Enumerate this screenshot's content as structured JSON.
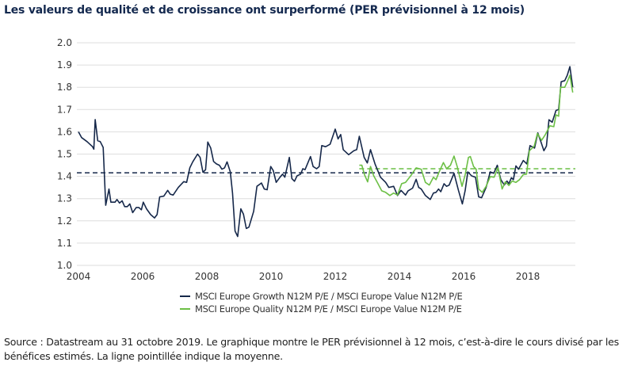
{
  "title": "Les valeurs de qualité et de croissance ont surperformé (PER prévisionnel à 12 mois)",
  "source": "Source : Datastream au 31 octobre 2019. Le graphique montre le PER prévisionnel à 12 mois, c’est-à-dire le cours divisé par les bénéfices estimés. La ligne pointillée indique la moyenne.",
  "chart_data": {
    "type": "line",
    "title": "Les valeurs de qualité et de croissance ont surperformé (PER prévisionnel à 12 mois)",
    "xlabel": "",
    "ylabel": "",
    "xlim": [
      2004,
      2019.45
    ],
    "ylim": [
      1.0,
      2.0
    ],
    "grid": true,
    "legend_position": "bottom",
    "x_ticks": [
      "2004",
      "2006",
      "2008",
      "2010",
      "2012",
      "2014",
      "2016",
      "2018"
    ],
    "y_ticks": [
      "2.0",
      "1.9",
      "1.8",
      "1.7",
      "1.6",
      "1.5",
      "1.4",
      "1.3",
      "1.2",
      "1.1",
      "1.0"
    ],
    "series": [
      {
        "name": "MSCI Europe Growth N12M P/E / MSCI Europe Value N12M P/E",
        "color": "#16284a",
        "mean": 1.416,
        "points": [
          [
            2004.0,
            1.6
          ],
          [
            2004.1,
            1.574
          ],
          [
            2004.27,
            1.556
          ],
          [
            2004.44,
            1.533
          ],
          [
            2004.48,
            1.522
          ],
          [
            2004.52,
            1.655
          ],
          [
            2004.6,
            1.56
          ],
          [
            2004.68,
            1.556
          ],
          [
            2004.77,
            1.53
          ],
          [
            2004.85,
            1.27
          ],
          [
            2004.95,
            1.343
          ],
          [
            2005.01,
            1.284
          ],
          [
            2005.14,
            1.284
          ],
          [
            2005.2,
            1.296
          ],
          [
            2005.28,
            1.28
          ],
          [
            2005.36,
            1.29
          ],
          [
            2005.44,
            1.264
          ],
          [
            2005.52,
            1.264
          ],
          [
            2005.6,
            1.276
          ],
          [
            2005.69,
            1.237
          ],
          [
            2005.8,
            1.26
          ],
          [
            2005.88,
            1.26
          ],
          [
            2005.96,
            1.25
          ],
          [
            2006.02,
            1.284
          ],
          [
            2006.12,
            1.254
          ],
          [
            2006.25,
            1.228
          ],
          [
            2006.37,
            1.213
          ],
          [
            2006.45,
            1.228
          ],
          [
            2006.53,
            1.308
          ],
          [
            2006.66,
            1.311
          ],
          [
            2006.78,
            1.337
          ],
          [
            2006.86,
            1.32
          ],
          [
            2006.95,
            1.316
          ],
          [
            2007.11,
            1.35
          ],
          [
            2007.28,
            1.376
          ],
          [
            2007.37,
            1.373
          ],
          [
            2007.47,
            1.438
          ],
          [
            2007.56,
            1.465
          ],
          [
            2007.71,
            1.5
          ],
          [
            2007.79,
            1.485
          ],
          [
            2007.88,
            1.418
          ],
          [
            2007.96,
            1.43
          ],
          [
            2008.03,
            1.554
          ],
          [
            2008.12,
            1.527
          ],
          [
            2008.21,
            1.467
          ],
          [
            2008.3,
            1.456
          ],
          [
            2008.39,
            1.45
          ],
          [
            2008.47,
            1.432
          ],
          [
            2008.55,
            1.438
          ],
          [
            2008.63,
            1.465
          ],
          [
            2008.73,
            1.42
          ],
          [
            2008.8,
            1.325
          ],
          [
            2008.88,
            1.154
          ],
          [
            2008.96,
            1.13
          ],
          [
            2009.06,
            1.254
          ],
          [
            2009.14,
            1.23
          ],
          [
            2009.23,
            1.166
          ],
          [
            2009.31,
            1.172
          ],
          [
            2009.46,
            1.243
          ],
          [
            2009.56,
            1.355
          ],
          [
            2009.7,
            1.37
          ],
          [
            2009.79,
            1.343
          ],
          [
            2009.88,
            1.34
          ],
          [
            2009.99,
            1.444
          ],
          [
            2010.07,
            1.426
          ],
          [
            2010.16,
            1.373
          ],
          [
            2010.28,
            1.396
          ],
          [
            2010.36,
            1.41
          ],
          [
            2010.43,
            1.396
          ],
          [
            2010.57,
            1.485
          ],
          [
            2010.65,
            1.39
          ],
          [
            2010.73,
            1.378
          ],
          [
            2010.81,
            1.402
          ],
          [
            2010.92,
            1.41
          ],
          [
            2010.99,
            1.434
          ],
          [
            2011.06,
            1.43
          ],
          [
            2011.23,
            1.489
          ],
          [
            2011.31,
            1.444
          ],
          [
            2011.42,
            1.434
          ],
          [
            2011.5,
            1.444
          ],
          [
            2011.58,
            1.538
          ],
          [
            2011.7,
            1.533
          ],
          [
            2011.84,
            1.544
          ],
          [
            2012.0,
            1.612
          ],
          [
            2012.09,
            1.568
          ],
          [
            2012.17,
            1.588
          ],
          [
            2012.25,
            1.52
          ],
          [
            2012.42,
            1.497
          ],
          [
            2012.58,
            1.515
          ],
          [
            2012.67,
            1.52
          ],
          [
            2012.75,
            1.58
          ],
          [
            2012.9,
            1.485
          ],
          [
            2013.0,
            1.46
          ],
          [
            2013.1,
            1.52
          ],
          [
            2013.24,
            1.456
          ],
          [
            2013.41,
            1.396
          ],
          [
            2013.57,
            1.373
          ],
          [
            2013.67,
            1.35
          ],
          [
            2013.82,
            1.355
          ],
          [
            2013.94,
            1.314
          ],
          [
            2014.05,
            1.337
          ],
          [
            2014.19,
            1.316
          ],
          [
            2014.27,
            1.335
          ],
          [
            2014.41,
            1.347
          ],
          [
            2014.52,
            1.387
          ],
          [
            2014.6,
            1.35
          ],
          [
            2014.68,
            1.343
          ],
          [
            2014.81,
            1.314
          ],
          [
            2014.96,
            1.296
          ],
          [
            2015.06,
            1.325
          ],
          [
            2015.14,
            1.328
          ],
          [
            2015.22,
            1.343
          ],
          [
            2015.29,
            1.331
          ],
          [
            2015.39,
            1.367
          ],
          [
            2015.47,
            1.355
          ],
          [
            2015.55,
            1.361
          ],
          [
            2015.7,
            1.414
          ],
          [
            2015.84,
            1.337
          ],
          [
            2015.96,
            1.276
          ],
          [
            2016.05,
            1.337
          ],
          [
            2016.13,
            1.42
          ],
          [
            2016.25,
            1.402
          ],
          [
            2016.37,
            1.396
          ],
          [
            2016.47,
            1.308
          ],
          [
            2016.56,
            1.304
          ],
          [
            2016.7,
            1.35
          ],
          [
            2016.83,
            1.42
          ],
          [
            2016.94,
            1.414
          ],
          [
            2017.05,
            1.45
          ],
          [
            2017.16,
            1.385
          ],
          [
            2017.27,
            1.361
          ],
          [
            2017.35,
            1.379
          ],
          [
            2017.41,
            1.367
          ],
          [
            2017.49,
            1.394
          ],
          [
            2017.55,
            1.385
          ],
          [
            2017.63,
            1.447
          ],
          [
            2017.71,
            1.432
          ],
          [
            2017.86,
            1.471
          ],
          [
            2017.97,
            1.456
          ],
          [
            2018.07,
            1.538
          ],
          [
            2018.21,
            1.527
          ],
          [
            2018.31,
            1.595
          ],
          [
            2018.42,
            1.55
          ],
          [
            2018.5,
            1.515
          ],
          [
            2018.58,
            1.536
          ],
          [
            2018.66,
            1.654
          ],
          [
            2018.76,
            1.643
          ],
          [
            2018.88,
            1.696
          ],
          [
            2018.96,
            1.7
          ],
          [
            2019.04,
            1.825
          ],
          [
            2019.15,
            1.83
          ],
          [
            2019.23,
            1.854
          ],
          [
            2019.31,
            1.893
          ],
          [
            2019.4,
            1.8
          ]
        ]
      },
      {
        "name": "MSCI Europe Quality N12M P/E / MSCI Europe Value N12M P/E",
        "color": "#6cbf45",
        "mean": 1.434,
        "points": [
          [
            2012.75,
            1.45
          ],
          [
            2012.83,
            1.45
          ],
          [
            2012.91,
            1.408
          ],
          [
            2013.01,
            1.375
          ],
          [
            2013.1,
            1.444
          ],
          [
            2013.2,
            1.402
          ],
          [
            2013.31,
            1.373
          ],
          [
            2013.45,
            1.335
          ],
          [
            2013.57,
            1.328
          ],
          [
            2013.7,
            1.314
          ],
          [
            2013.82,
            1.325
          ],
          [
            2013.94,
            1.316
          ],
          [
            2014.07,
            1.367
          ],
          [
            2014.19,
            1.373
          ],
          [
            2014.35,
            1.402
          ],
          [
            2014.52,
            1.438
          ],
          [
            2014.68,
            1.432
          ],
          [
            2014.81,
            1.373
          ],
          [
            2014.93,
            1.361
          ],
          [
            2015.06,
            1.396
          ],
          [
            2015.14,
            1.385
          ],
          [
            2015.22,
            1.414
          ],
          [
            2015.37,
            1.462
          ],
          [
            2015.47,
            1.434
          ],
          [
            2015.59,
            1.45
          ],
          [
            2015.7,
            1.491
          ],
          [
            2015.8,
            1.444
          ],
          [
            2015.95,
            1.355
          ],
          [
            2016.05,
            1.408
          ],
          [
            2016.15,
            1.485
          ],
          [
            2016.21,
            1.489
          ],
          [
            2016.31,
            1.444
          ],
          [
            2016.39,
            1.432
          ],
          [
            2016.47,
            1.343
          ],
          [
            2016.58,
            1.328
          ],
          [
            2016.7,
            1.355
          ],
          [
            2016.83,
            1.399
          ],
          [
            2016.95,
            1.396
          ],
          [
            2017.07,
            1.438
          ],
          [
            2017.2,
            1.343
          ],
          [
            2017.3,
            1.375
          ],
          [
            2017.41,
            1.359
          ],
          [
            2017.51,
            1.379
          ],
          [
            2017.63,
            1.373
          ],
          [
            2017.74,
            1.385
          ],
          [
            2017.86,
            1.408
          ],
          [
            2017.96,
            1.41
          ],
          [
            2018.05,
            1.515
          ],
          [
            2018.2,
            1.536
          ],
          [
            2018.3,
            1.592
          ],
          [
            2018.43,
            1.562
          ],
          [
            2018.54,
            1.586
          ],
          [
            2018.69,
            1.627
          ],
          [
            2018.81,
            1.623
          ],
          [
            2018.88,
            1.676
          ],
          [
            2018.96,
            1.67
          ],
          [
            2019.02,
            1.8
          ],
          [
            2019.15,
            1.8
          ],
          [
            2019.23,
            1.825
          ],
          [
            2019.31,
            1.854
          ],
          [
            2019.4,
            1.777
          ]
        ]
      }
    ]
  }
}
